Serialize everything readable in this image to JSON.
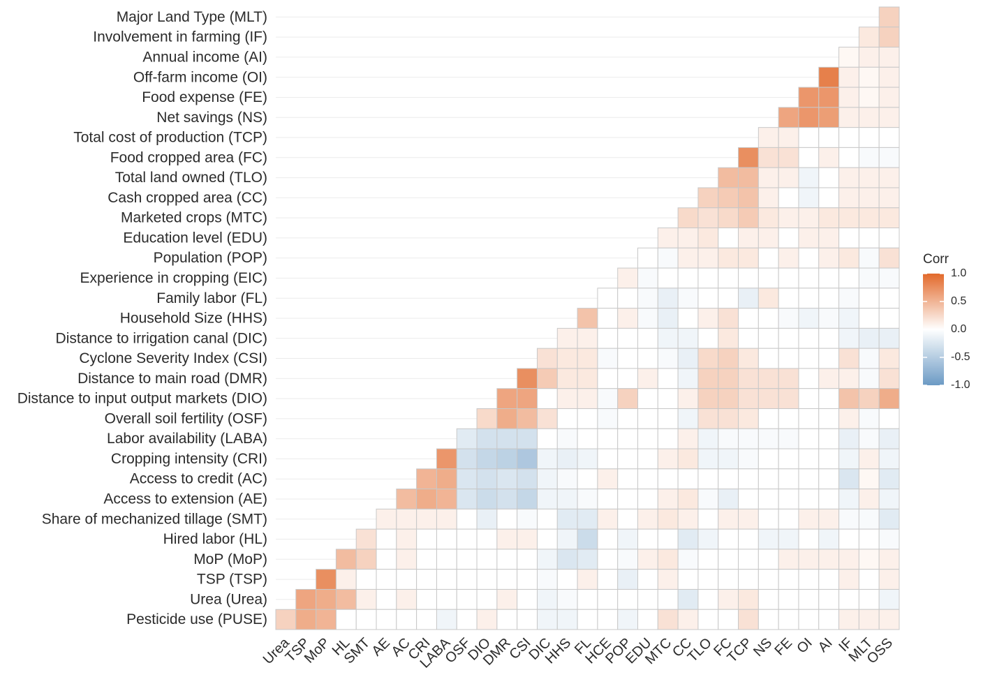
{
  "chart_data": {
    "type": "heatmap",
    "x_categories": [
      "Urea",
      "TSP",
      "MoP",
      "HL",
      "SMT",
      "AE",
      "AC",
      "CRI",
      "LABA",
      "OSF",
      "DIO",
      "DMR",
      "CSI",
      "DIC",
      "HHS",
      "FL",
      "HCE",
      "POP",
      "EDU",
      "MTC",
      "CC",
      "TLO",
      "FC",
      "TCP",
      "NS",
      "FE",
      "OI",
      "AI",
      "IF",
      "MLT",
      "OSS"
    ],
    "y_categories": [
      "Major Land Type (MLT)",
      "Involvement in farming (IF)",
      "Annual income (AI)",
      "Off-farm income (OI)",
      "Food expense (FE)",
      "Net savings (NS)",
      "Total cost of production (TCP)",
      "Food cropped area (FC)",
      "Total land owned (TLO)",
      "Cash cropped area (CC)",
      "Marketed crops (MTC)",
      "Education level (EDU)",
      "Population (POP)",
      "Experience in cropping (EIC)",
      "Family labor (FL)",
      "Household Size (HHS)",
      "Distance to irrigation canal (DIC)",
      "Cyclone Severity Index (CSI)",
      "Distance to main road (DMR)",
      "Distance to input output markets (DIO)",
      "Overall soil fertility (OSF)",
      "Labor availability (LABA)",
      "Cropping intensity (CRI)",
      "Access to credit (AC)",
      "Access to extension (AE)",
      "Share of mechanized tillage (SMT)",
      "Hired labor (HL)",
      "MoP (MoP)",
      "TSP (TSP)",
      "Urea (Urea)",
      "Pesticide use (PUSE)"
    ],
    "z": [
      [
        null,
        null,
        null,
        null,
        null,
        null,
        null,
        null,
        null,
        null,
        null,
        null,
        null,
        null,
        null,
        null,
        null,
        null,
        null,
        null,
        null,
        null,
        null,
        null,
        null,
        null,
        null,
        null,
        null,
        null,
        0.3
      ],
      [
        null,
        null,
        null,
        null,
        null,
        null,
        null,
        null,
        null,
        null,
        null,
        null,
        null,
        null,
        null,
        null,
        null,
        null,
        null,
        null,
        null,
        null,
        null,
        null,
        null,
        null,
        null,
        null,
        null,
        0.15,
        0.3
      ],
      [
        null,
        null,
        null,
        null,
        null,
        null,
        null,
        null,
        null,
        null,
        null,
        null,
        null,
        null,
        null,
        null,
        null,
        null,
        null,
        null,
        null,
        null,
        null,
        null,
        null,
        null,
        null,
        null,
        0.05,
        0.1,
        0.1
      ],
      [
        null,
        null,
        null,
        null,
        null,
        null,
        null,
        null,
        null,
        null,
        null,
        null,
        null,
        null,
        null,
        null,
        null,
        null,
        null,
        null,
        null,
        null,
        null,
        null,
        null,
        null,
        null,
        0.85,
        0.1,
        0.05,
        0.1
      ],
      [
        null,
        null,
        null,
        null,
        null,
        null,
        null,
        null,
        null,
        null,
        null,
        null,
        null,
        null,
        null,
        null,
        null,
        null,
        null,
        null,
        null,
        null,
        null,
        null,
        null,
        null,
        0.7,
        0.7,
        0.1,
        0.05,
        0.1
      ],
      [
        null,
        null,
        null,
        null,
        null,
        null,
        null,
        null,
        null,
        null,
        null,
        null,
        null,
        null,
        null,
        null,
        null,
        null,
        null,
        null,
        null,
        null,
        null,
        null,
        null,
        0.6,
        0.7,
        0.65,
        0.1,
        0.1,
        0.1
      ],
      [
        null,
        null,
        null,
        null,
        null,
        null,
        null,
        null,
        null,
        null,
        null,
        null,
        null,
        null,
        null,
        null,
        null,
        null,
        null,
        null,
        null,
        null,
        null,
        null,
        0.1,
        0.1,
        0,
        0,
        0,
        0,
        0
      ],
      [
        null,
        null,
        null,
        null,
        null,
        null,
        null,
        null,
        null,
        null,
        null,
        null,
        null,
        null,
        null,
        null,
        null,
        null,
        null,
        null,
        null,
        null,
        null,
        0.75,
        0.2,
        0.2,
        0,
        0.1,
        0,
        -0.05,
        -0.05
      ],
      [
        null,
        null,
        null,
        null,
        null,
        null,
        null,
        null,
        null,
        null,
        null,
        null,
        null,
        null,
        null,
        null,
        null,
        null,
        null,
        null,
        null,
        null,
        0.45,
        0.45,
        0.1,
        0.1,
        -0.1,
        0,
        0.1,
        0.1,
        0.1
      ],
      [
        null,
        null,
        null,
        null,
        null,
        null,
        null,
        null,
        null,
        null,
        null,
        null,
        null,
        null,
        null,
        null,
        null,
        null,
        null,
        null,
        null,
        0.3,
        0.35,
        0.4,
        0.1,
        0,
        -0.1,
        0,
        0.1,
        0.1,
        0.1
      ],
      [
        null,
        null,
        null,
        null,
        null,
        null,
        null,
        null,
        null,
        null,
        null,
        null,
        null,
        null,
        null,
        null,
        null,
        null,
        null,
        null,
        0.25,
        0.2,
        0.25,
        0.35,
        0.15,
        0.1,
        0.1,
        0.15,
        0.15,
        0.15,
        0.15
      ],
      [
        null,
        null,
        null,
        null,
        null,
        null,
        null,
        null,
        null,
        null,
        null,
        null,
        null,
        null,
        null,
        null,
        null,
        null,
        null,
        0.1,
        0.1,
        0.15,
        0,
        0.1,
        0.1,
        0,
        0.1,
        0.1,
        0,
        0,
        0
      ],
      [
        null,
        null,
        null,
        null,
        null,
        null,
        null,
        null,
        null,
        null,
        null,
        null,
        null,
        null,
        null,
        null,
        null,
        null,
        0,
        -0.05,
        0.1,
        0.1,
        0.15,
        0.15,
        0,
        0.1,
        0,
        0.1,
        0.15,
        -0.05,
        0.2
      ],
      [
        null,
        null,
        null,
        null,
        null,
        null,
        null,
        null,
        null,
        null,
        null,
        null,
        null,
        null,
        null,
        null,
        null,
        0.1,
        -0.05,
        0,
        0,
        0,
        0,
        0,
        0,
        0,
        0,
        0,
        0,
        -0.05,
        -0.05
      ],
      [
        null,
        null,
        null,
        null,
        null,
        null,
        null,
        null,
        null,
        null,
        null,
        null,
        null,
        null,
        null,
        null,
        0,
        0,
        -0.05,
        -0.15,
        -0.05,
        0,
        0,
        -0.15,
        0.15,
        0,
        0,
        0,
        -0.05,
        0,
        0
      ],
      [
        null,
        null,
        null,
        null,
        null,
        null,
        null,
        null,
        null,
        null,
        null,
        null,
        null,
        null,
        null,
        0.4,
        0,
        0.1,
        -0.05,
        -0.15,
        0,
        0.1,
        0.2,
        0,
        0,
        -0.05,
        -0.1,
        -0.05,
        -0.1,
        0,
        0
      ],
      [
        null,
        null,
        null,
        null,
        null,
        null,
        null,
        null,
        null,
        null,
        null,
        null,
        null,
        null,
        0.1,
        0.1,
        0,
        0,
        0,
        -0.1,
        -0.1,
        0,
        0.15,
        0,
        0,
        0,
        0,
        0,
        -0.1,
        -0.15,
        -0.15
      ],
      [
        null,
        null,
        null,
        null,
        null,
        null,
        null,
        null,
        null,
        null,
        null,
        null,
        null,
        0.2,
        0.15,
        0.15,
        -0.05,
        0,
        0,
        -0.05,
        -0.15,
        0.25,
        0.3,
        0.15,
        0,
        0,
        0,
        0,
        0.2,
        -0.05,
        0.15
      ],
      [
        null,
        null,
        null,
        null,
        null,
        null,
        null,
        null,
        null,
        null,
        null,
        null,
        0.75,
        0.35,
        0.15,
        0.15,
        0,
        0,
        0.1,
        0,
        -0.1,
        0.3,
        0.3,
        0.2,
        0.2,
        0.2,
        0,
        0.1,
        0.1,
        -0.05,
        0.2
      ],
      [
        null,
        null,
        null,
        null,
        null,
        null,
        null,
        null,
        null,
        null,
        null,
        0.6,
        0.6,
        0,
        0.1,
        0.1,
        -0.05,
        0.3,
        0,
        0,
        0.1,
        0.3,
        0.3,
        0.2,
        0.2,
        0.2,
        0,
        0,
        0.4,
        0.3,
        0.55
      ],
      [
        null,
        null,
        null,
        null,
        null,
        null,
        null,
        null,
        null,
        null,
        0.25,
        0.55,
        0.45,
        0.2,
        0,
        0,
        -0.05,
        0,
        0,
        0,
        -0.1,
        0.2,
        0.2,
        0.15,
        0,
        0,
        0,
        0,
        0.1,
        -0.05,
        0
      ],
      [
        null,
        null,
        null,
        null,
        null,
        null,
        null,
        null,
        null,
        -0.2,
        -0.3,
        -0.3,
        -0.3,
        0,
        -0.05,
        0,
        0,
        0,
        0,
        0,
        0.1,
        -0.1,
        -0.05,
        -0.05,
        -0.05,
        -0.05,
        0,
        0,
        -0.15,
        -0.05,
        -0.15
      ],
      [
        null,
        null,
        null,
        null,
        null,
        null,
        null,
        null,
        0.7,
        -0.3,
        -0.4,
        -0.45,
        -0.55,
        -0.1,
        -0.15,
        -0.1,
        0,
        0,
        0,
        0.1,
        0.15,
        -0.1,
        -0.1,
        -0.05,
        0,
        0,
        0,
        0,
        -0.1,
        0.1,
        -0.1
      ],
      [
        null,
        null,
        null,
        null,
        null,
        null,
        null,
        0.5,
        0.55,
        -0.25,
        -0.3,
        -0.25,
        -0.3,
        -0.1,
        -0.05,
        0,
        0.1,
        0,
        0,
        0,
        0,
        0,
        0,
        0,
        0,
        0,
        0,
        0,
        -0.25,
        0.05,
        -0.2
      ],
      [
        null,
        null,
        null,
        null,
        null,
        null,
        0.45,
        0.55,
        0.5,
        -0.25,
        -0.35,
        -0.3,
        -0.4,
        -0.1,
        -0.1,
        -0.05,
        0,
        0,
        0,
        0.1,
        0.15,
        -0.05,
        -0.15,
        0,
        0,
        0,
        0,
        0,
        -0.1,
        0.1,
        -0.1
      ],
      [
        null,
        null,
        null,
        null,
        null,
        0.1,
        0.1,
        0.1,
        0.1,
        0,
        -0.15,
        0,
        -0.05,
        0,
        -0.2,
        -0.2,
        0.1,
        0,
        0.1,
        0.15,
        0.1,
        0,
        0.1,
        0.1,
        0,
        0,
        0.1,
        0.1,
        -0.05,
        -0.05,
        -0.2
      ],
      [
        null,
        null,
        null,
        null,
        0.2,
        0,
        0.1,
        0,
        0,
        0,
        0,
        0.1,
        0.1,
        0,
        -0.1,
        -0.35,
        0,
        -0.1,
        0,
        0,
        -0.2,
        -0.1,
        0,
        0,
        -0.1,
        -0.1,
        0,
        -0.1,
        0,
        0,
        -0.05
      ],
      [
        null,
        null,
        null,
        0.45,
        0.3,
        0,
        0.1,
        0,
        0,
        0,
        0,
        0,
        0,
        -0.1,
        -0.25,
        -0.2,
        0,
        -0.05,
        0.1,
        0.15,
        -0.05,
        0,
        0,
        0,
        0,
        0.1,
        0.1,
        0.1,
        0.1,
        0.05,
        0.1
      ],
      [
        null,
        null,
        0.75,
        0.1,
        0,
        0,
        0,
        0,
        0,
        0,
        0,
        0,
        0,
        -0.05,
        0,
        0.1,
        0,
        -0.15,
        0,
        0.1,
        0,
        0,
        0,
        0,
        0,
        0,
        0,
        0,
        0.1,
        0,
        0.1
      ],
      [
        null,
        0.6,
        0.55,
        0.45,
        0.1,
        0,
        0.1,
        0,
        0,
        0,
        0,
        0.1,
        0,
        -0.1,
        -0.05,
        0,
        0,
        0,
        0,
        0,
        -0.2,
        0,
        0.1,
        0.15,
        0,
        0,
        0,
        0,
        0,
        0,
        -0.1
      ],
      [
        0.3,
        0.55,
        0.5,
        0,
        0,
        0,
        0,
        0,
        -0.1,
        0,
        0.1,
        0,
        0,
        -0.1,
        -0.1,
        0,
        0,
        -0.1,
        0,
        0.2,
        0.1,
        0,
        0,
        0.2,
        0,
        0,
        0,
        0,
        0.1,
        0.1,
        0.1
      ]
    ],
    "legend_title": "Corr",
    "zlim": [
      -1,
      1
    ],
    "zticks": [
      {
        "value": 1,
        "label": "1.0"
      },
      0.5,
      {
        "value": 0,
        "label": "0.0"
      },
      -0.5,
      {
        "value": -1,
        "label": "-1.0"
      }
    ],
    "colors": {
      "low": "#6b9ac4",
      "mid": "#ffffff",
      "high": "#e2692b"
    },
    "cell_border": "#c8c8c8"
  }
}
